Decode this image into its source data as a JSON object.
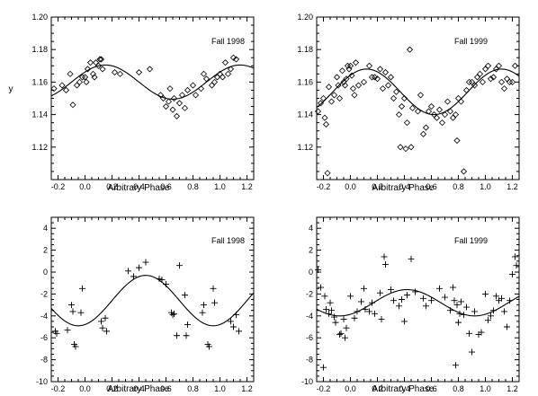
{
  "chart_data": [
    {
      "type": "scatter",
      "title": "",
      "annotation": "Fall 1998",
      "xlabel": "Arbitrary Phase",
      "ylabel": "y",
      "xlim": [
        -0.25,
        1.25
      ],
      "ylim": [
        1.1,
        1.2
      ],
      "xticks": [
        -0.2,
        0.0,
        0.2,
        0.4,
        0.6,
        0.8,
        1.0,
        1.2
      ],
      "yticks": [
        1.12,
        1.14,
        1.16,
        1.18,
        1.2
      ],
      "xtick_labels": [
        "-0.2",
        "0.0",
        "0.2",
        "0.4",
        "0.6",
        "0.8",
        "1.0",
        "1.2"
      ],
      "ytick_labels": [
        "1.12",
        "1.14",
        "1.16",
        "1.18",
        "1.20"
      ],
      "marker": "diamond",
      "grid": false,
      "points": [
        [
          -0.23,
          1.156
        ],
        [
          -0.17,
          1.158
        ],
        [
          -0.14,
          1.155
        ],
        [
          -0.11,
          1.165
        ],
        [
          -0.09,
          1.146
        ],
        [
          -0.06,
          1.158
        ],
        [
          -0.04,
          1.16
        ],
        [
          -0.02,
          1.163
        ],
        [
          0.0,
          1.163
        ],
        [
          0.01,
          1.16
        ],
        [
          0.02,
          1.168
        ],
        [
          0.04,
          1.172
        ],
        [
          0.06,
          1.165
        ],
        [
          0.07,
          1.163
        ],
        [
          0.08,
          1.172
        ],
        [
          0.1,
          1.17
        ],
        [
          0.11,
          1.174
        ],
        [
          0.12,
          1.174
        ],
        [
          0.13,
          1.168
        ],
        [
          0.22,
          1.166
        ],
        [
          0.26,
          1.165
        ],
        [
          0.4,
          1.166
        ],
        [
          0.48,
          1.168
        ],
        [
          0.56,
          1.152
        ],
        [
          0.58,
          1.15
        ],
        [
          0.6,
          1.145
        ],
        [
          0.62,
          1.148
        ],
        [
          0.63,
          1.156
        ],
        [
          0.65,
          1.143
        ],
        [
          0.66,
          1.15
        ],
        [
          0.68,
          1.139
        ],
        [
          0.7,
          1.147
        ],
        [
          0.72,
          1.152
        ],
        [
          0.74,
          1.144
        ],
        [
          0.76,
          1.155
        ],
        [
          0.8,
          1.158
        ],
        [
          0.82,
          1.152
        ],
        [
          0.86,
          1.156
        ],
        [
          0.88,
          1.165
        ],
        [
          0.9,
          1.162
        ],
        [
          0.94,
          1.158
        ],
        [
          0.96,
          1.16
        ],
        [
          0.98,
          1.163
        ],
        [
          1.0,
          1.165
        ],
        [
          1.02,
          1.163
        ],
        [
          1.04,
          1.172
        ],
        [
          1.06,
          1.165
        ],
        [
          1.08,
          1.168
        ],
        [
          1.1,
          1.175
        ],
        [
          1.12,
          1.174
        ]
      ],
      "fit": {
        "mean": 1.16,
        "amplitude": 0.0105,
        "peak_phase": 0.15
      }
    },
    {
      "type": "scatter",
      "title": "",
      "annotation": "Fall 1999",
      "xlabel": "Arbitrary Phase",
      "ylabel": "",
      "xlim": [
        -0.25,
        1.25
      ],
      "ylim": [
        1.1,
        1.2
      ],
      "xticks": [
        -0.2,
        0.0,
        0.2,
        0.4,
        0.6,
        0.8,
        1.0,
        1.2
      ],
      "yticks": [
        1.12,
        1.14,
        1.16,
        1.18,
        1.2
      ],
      "xtick_labels": [
        "-0.2",
        "0.0",
        "0.2",
        "0.4",
        "0.6",
        "0.8",
        "1.0",
        "1.2"
      ],
      "ytick_labels": [
        "1.12",
        "1.14",
        "1.16",
        "1.18",
        "1.20"
      ],
      "marker": "diamond",
      "grid": false,
      "points": [
        [
          -0.24,
          1.142
        ],
        [
          -0.22,
          1.147
        ],
        [
          -0.2,
          1.15
        ],
        [
          -0.19,
          1.138
        ],
        [
          -0.18,
          1.134
        ],
        [
          -0.17,
          1.104
        ],
        [
          -0.16,
          1.157
        ],
        [
          -0.14,
          1.148
        ],
        [
          -0.12,
          1.152
        ],
        [
          -0.1,
          1.163
        ],
        [
          -0.09,
          1.158
        ],
        [
          -0.08,
          1.15
        ],
        [
          -0.06,
          1.167
        ],
        [
          -0.05,
          1.16
        ],
        [
          -0.04,
          1.158
        ],
        [
          -0.03,
          1.162
        ],
        [
          -0.02,
          1.17
        ],
        [
          -0.01,
          1.168
        ],
        [
          0.0,
          1.17
        ],
        [
          0.01,
          1.164
        ],
        [
          0.02,
          1.156
        ],
        [
          0.03,
          1.152
        ],
        [
          0.04,
          1.172
        ],
        [
          0.06,
          1.158
        ],
        [
          0.1,
          1.16
        ],
        [
          0.14,
          1.17
        ],
        [
          0.16,
          1.163
        ],
        [
          0.18,
          1.163
        ],
        [
          0.2,
          1.162
        ],
        [
          0.22,
          1.168
        ],
        [
          0.24,
          1.156
        ],
        [
          0.26,
          1.166
        ],
        [
          0.28,
          1.158
        ],
        [
          0.3,
          1.163
        ],
        [
          0.32,
          1.15
        ],
        [
          0.34,
          1.154
        ],
        [
          0.36,
          1.14
        ],
        [
          0.37,
          1.12
        ],
        [
          0.38,
          1.145
        ],
        [
          0.4,
          1.15
        ],
        [
          0.41,
          1.119
        ],
        [
          0.42,
          1.135
        ],
        [
          0.44,
          1.18
        ],
        [
          0.45,
          1.12
        ],
        [
          0.46,
          1.144
        ],
        [
          0.5,
          1.142
        ],
        [
          0.52,
          1.152
        ],
        [
          0.54,
          1.128
        ],
        [
          0.56,
          1.132
        ],
        [
          0.58,
          1.142
        ],
        [
          0.6,
          1.145
        ],
        [
          0.62,
          1.14
        ],
        [
          0.64,
          1.138
        ],
        [
          0.66,
          1.143
        ],
        [
          0.68,
          1.135
        ],
        [
          0.7,
          1.14
        ],
        [
          0.72,
          1.148
        ],
        [
          0.74,
          1.142
        ],
        [
          0.76,
          1.138
        ],
        [
          0.78,
          1.14
        ],
        [
          0.79,
          1.124
        ],
        [
          0.8,
          1.15
        ],
        [
          0.82,
          1.148
        ],
        [
          0.84,
          1.105
        ],
        [
          0.86,
          1.155
        ],
        [
          0.88,
          1.16
        ],
        [
          0.9,
          1.16
        ],
        [
          0.92,
          1.158
        ],
        [
          0.94,
          1.163
        ],
        [
          0.96,
          1.165
        ],
        [
          0.98,
          1.16
        ],
        [
          1.0,
          1.168
        ],
        [
          1.02,
          1.17
        ],
        [
          1.04,
          1.162
        ],
        [
          1.06,
          1.163
        ],
        [
          1.08,
          1.168
        ],
        [
          1.1,
          1.17
        ],
        [
          1.12,
          1.16
        ],
        [
          1.14,
          1.156
        ],
        [
          1.16,
          1.162
        ],
        [
          1.18,
          1.16
        ],
        [
          1.2,
          1.16
        ],
        [
          1.22,
          1.17
        ]
      ],
      "fit": {
        "mean": 1.154,
        "amplitude": 0.014,
        "peak_phase": 0.12
      }
    },
    {
      "type": "scatter",
      "title": "",
      "annotation": "Fall 1998",
      "xlabel": "Arbitrary Phase",
      "ylabel": "",
      "xlim": [
        -0.25,
        1.25
      ],
      "ylim": [
        -10,
        5
      ],
      "xticks": [
        -0.2,
        0.0,
        0.2,
        0.4,
        0.6,
        0.8,
        1.0,
        1.2
      ],
      "yticks": [
        -10,
        -8,
        -6,
        -4,
        -2,
        0,
        2,
        4
      ],
      "xtick_labels": [
        "-0.2",
        "0.0",
        "0.2",
        "0.4",
        "0.6",
        "0.8",
        "1.0",
        "1.2"
      ],
      "ytick_labels": [
        "-10",
        "-8",
        "-6",
        "-4",
        "-2",
        "0",
        "2",
        "4"
      ],
      "marker": "plus",
      "grid": false,
      "points": [
        [
          -0.22,
          -5.4
        ],
        [
          -0.21,
          -5.6
        ],
        [
          -0.13,
          -5.3
        ],
        [
          -0.1,
          -3.0
        ],
        [
          -0.09,
          -3.6
        ],
        [
          -0.08,
          -6.6
        ],
        [
          -0.07,
          -6.8
        ],
        [
          -0.02,
          -1.5
        ],
        [
          -0.03,
          -3.7
        ],
        [
          0.12,
          -4.5
        ],
        [
          0.13,
          -5.1
        ],
        [
          0.15,
          -4.2
        ],
        [
          0.16,
          -5.4
        ],
        [
          0.32,
          0.1
        ],
        [
          0.36,
          -0.4
        ],
        [
          0.4,
          0.4
        ],
        [
          0.45,
          0.9
        ],
        [
          0.55,
          -0.6
        ],
        [
          0.57,
          -0.7
        ],
        [
          0.6,
          -1.1
        ],
        [
          0.64,
          -3.7
        ],
        [
          0.65,
          -3.9
        ],
        [
          0.66,
          -3.8
        ],
        [
          0.68,
          -5.8
        ],
        [
          0.7,
          0.6
        ],
        [
          0.74,
          -2.1
        ],
        [
          0.75,
          -5.8
        ],
        [
          0.76,
          -4.8
        ],
        [
          0.87,
          -3.7
        ],
        [
          0.88,
          -3.0
        ],
        [
          0.91,
          -6.6
        ],
        [
          0.92,
          -6.8
        ],
        [
          0.95,
          -1.5
        ],
        [
          0.96,
          -2.8
        ],
        [
          1.08,
          -4.5
        ],
        [
          1.1,
          -5.0
        ],
        [
          1.12,
          -3.9
        ],
        [
          1.14,
          -5.4
        ]
      ],
      "fit": {
        "mean": -2.6,
        "amplitude": 2.3,
        "peak_phase": 0.45
      }
    },
    {
      "type": "scatter",
      "title": "",
      "annotation": "Fall 1999",
      "xlabel": "Arbitrary Phase",
      "ylabel": "",
      "xlim": [
        -0.25,
        1.25
      ],
      "ylim": [
        -10,
        5
      ],
      "xticks": [
        -0.2,
        0.0,
        0.2,
        0.4,
        0.6,
        0.8,
        1.0,
        1.2
      ],
      "yticks": [
        -10,
        -8,
        -6,
        -4,
        -2,
        0,
        2,
        4
      ],
      "xtick_labels": [
        "-0.2",
        "0.0",
        "0.2",
        "0.4",
        "0.6",
        "0.8",
        "1.0",
        "1.2"
      ],
      "ytick_labels": [
        "-10",
        "-8",
        "-6",
        "-4",
        "-2",
        "0",
        "2",
        "4"
      ],
      "marker": "plus",
      "grid": false,
      "points": [
        [
          -0.24,
          0.2
        ],
        [
          -0.22,
          -1.4
        ],
        [
          -0.2,
          -8.7
        ],
        [
          -0.19,
          -2.2
        ],
        [
          -0.18,
          -3.4
        ],
        [
          -0.16,
          -3.8
        ],
        [
          -0.15,
          -2.8
        ],
        [
          -0.14,
          -3.5
        ],
        [
          -0.12,
          -4.1
        ],
        [
          -0.11,
          -4.6
        ],
        [
          -0.08,
          -5.7
        ],
        [
          -0.07,
          -5.6
        ],
        [
          -0.05,
          -4.3
        ],
        [
          -0.04,
          -6.0
        ],
        [
          -0.03,
          -5.1
        ],
        [
          0.0,
          -2.2
        ],
        [
          0.03,
          -4.2
        ],
        [
          0.05,
          -3.6
        ],
        [
          0.08,
          -2.7
        ],
        [
          0.1,
          -1.5
        ],
        [
          0.11,
          -3.4
        ],
        [
          0.14,
          -3.6
        ],
        [
          0.16,
          -2.8
        ],
        [
          0.18,
          -3.8
        ],
        [
          0.22,
          -1.9
        ],
        [
          0.23,
          -4.3
        ],
        [
          0.25,
          1.4
        ],
        [
          0.26,
          0.7
        ],
        [
          0.3,
          -1.6
        ],
        [
          0.32,
          -2.6
        ],
        [
          0.36,
          -3.1
        ],
        [
          0.38,
          -2.5
        ],
        [
          0.4,
          -4.5
        ],
        [
          0.42,
          -2.1
        ],
        [
          0.45,
          1.2
        ],
        [
          0.48,
          -1.8
        ],
        [
          0.54,
          -2.4
        ],
        [
          0.56,
          -3.1
        ],
        [
          0.6,
          -2.6
        ],
        [
          0.66,
          -1.5
        ],
        [
          0.7,
          -2.3
        ],
        [
          0.74,
          -3.5
        ],
        [
          0.76,
          -1.4
        ],
        [
          0.77,
          -2.6
        ],
        [
          0.78,
          -8.5
        ],
        [
          0.79,
          -3.0
        ],
        [
          0.8,
          -4.6
        ],
        [
          0.81,
          -3.8
        ],
        [
          0.82,
          -2.7
        ],
        [
          0.84,
          -3.9
        ],
        [
          0.86,
          -3.2
        ],
        [
          0.88,
          -5.6
        ],
        [
          0.9,
          -7.3
        ],
        [
          0.92,
          -3.6
        ],
        [
          0.95,
          -5.7
        ],
        [
          0.97,
          -5.5
        ],
        [
          1.0,
          -2.0
        ],
        [
          1.02,
          -4.4
        ],
        [
          1.04,
          -4.0
        ],
        [
          1.06,
          -3.5
        ],
        [
          1.08,
          -2.2
        ],
        [
          1.1,
          -2.6
        ],
        [
          1.12,
          -2.4
        ],
        [
          1.14,
          -3.6
        ],
        [
          1.16,
          -5.0
        ],
        [
          1.18,
          -2.6
        ],
        [
          1.2,
          -0.2
        ],
        [
          1.22,
          1.4
        ],
        [
          1.23,
          0.6
        ]
      ],
      "fit": {
        "mean": -2.8,
        "amplitude": 1.2,
        "peak_phase": 0.42
      }
    }
  ]
}
